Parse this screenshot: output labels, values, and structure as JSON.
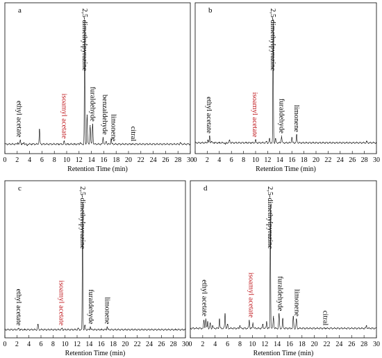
{
  "chart_data": [
    {
      "panel": "a",
      "type": "line",
      "xlabel": "Retention Time (min)",
      "xlim": [
        0,
        30
      ],
      "xticks": [
        0,
        2,
        4,
        6,
        8,
        10,
        12,
        14,
        16,
        18,
        20,
        22,
        24,
        26,
        28,
        30
      ],
      "baseline": 0.03,
      "peaks": [
        {
          "x": 2.1,
          "y": 0.04
        },
        {
          "x": 2.5,
          "y": 0.06
        },
        {
          "x": 2.7,
          "y": 0.03
        },
        {
          "x": 3.1,
          "y": 0.04
        },
        {
          "x": 3.6,
          "y": 0.02
        },
        {
          "x": 4.4,
          "y": 0.03
        },
        {
          "x": 5.6,
          "y": 0.14
        },
        {
          "x": 8.7,
          "y": 0.03
        },
        {
          "x": 9.6,
          "y": 0.05
        },
        {
          "x": 10.2,
          "y": 0.03
        },
        {
          "x": 11.3,
          "y": 0.03
        },
        {
          "x": 12.2,
          "y": 0.04
        },
        {
          "x": 12.9,
          "y": 0.96
        },
        {
          "x": 13.3,
          "y": 0.25
        },
        {
          "x": 13.8,
          "y": 0.17
        },
        {
          "x": 14.2,
          "y": 0.18
        },
        {
          "x": 15.9,
          "y": 0.08
        },
        {
          "x": 16.4,
          "y": 0.05
        },
        {
          "x": 17.2,
          "y": 0.07
        },
        {
          "x": 20.5,
          "y": 0.03
        },
        {
          "x": 28.4,
          "y": 0.04
        }
      ],
      "annotations": [
        {
          "text": "ethyl acetate",
          "x": 2.3,
          "color": "#000000"
        },
        {
          "text": "isoamyl acetate",
          "x": 9.6,
          "color": "#c0191e"
        },
        {
          "text": "2,5-dimethylpyrazine",
          "x": 12.9,
          "color": "#000000"
        },
        {
          "text": "furaldehyde",
          "x": 14.2,
          "color": "#000000"
        },
        {
          "text": "benzaldehyde",
          "x": 16.2,
          "color": "#000000"
        },
        {
          "text": "limonene",
          "x": 17.6,
          "color": "#000000"
        },
        {
          "text": "citral",
          "x": 20.8,
          "color": "#000000"
        }
      ]
    },
    {
      "panel": "b",
      "type": "line",
      "xlabel": "Retention Time (min)",
      "xlim": [
        0,
        30
      ],
      "xticks": [
        0,
        2,
        4,
        6,
        8,
        10,
        12,
        14,
        16,
        18,
        20,
        22,
        24,
        26,
        28,
        30
      ],
      "baseline": 0.04,
      "peaks": [
        {
          "x": 2.1,
          "y": 0.06
        },
        {
          "x": 2.4,
          "y": 0.09
        },
        {
          "x": 2.7,
          "y": 0.05
        },
        {
          "x": 3.2,
          "y": 0.04
        },
        {
          "x": 4.0,
          "y": 0.04
        },
        {
          "x": 5.0,
          "y": 0.03
        },
        {
          "x": 5.7,
          "y": 0.06
        },
        {
          "x": 8.5,
          "y": 0.04
        },
        {
          "x": 9.3,
          "y": 0.04
        },
        {
          "x": 10.0,
          "y": 0.06
        },
        {
          "x": 11.8,
          "y": 0.05
        },
        {
          "x": 12.3,
          "y": 0.07
        },
        {
          "x": 12.9,
          "y": 0.97
        },
        {
          "x": 13.3,
          "y": 0.07
        },
        {
          "x": 14.3,
          "y": 0.09
        },
        {
          "x": 16.0,
          "y": 0.08
        },
        {
          "x": 16.8,
          "y": 0.1
        },
        {
          "x": 28.4,
          "y": 0.05
        }
      ],
      "annotations": [
        {
          "text": "ethyl acetate",
          "x": 2.3,
          "color": "#000000"
        },
        {
          "text": "isoamyl acetate",
          "x": 9.9,
          "color": "#c0191e"
        },
        {
          "text": "2,5-dimethylpyrazine",
          "x": 12.9,
          "color": "#000000"
        },
        {
          "text": "furaldehyde",
          "x": 14.3,
          "color": "#000000"
        },
        {
          "text": "limonene",
          "x": 16.8,
          "color": "#000000"
        }
      ]
    },
    {
      "panel": "c",
      "type": "line",
      "xlabel": "Retention Time (min)",
      "xlim": [
        0,
        30
      ],
      "xticks": [
        0,
        2,
        4,
        6,
        8,
        10,
        12,
        14,
        16,
        18,
        20,
        22,
        24,
        26,
        28,
        30
      ],
      "baseline": 0.02,
      "peaks": [
        {
          "x": 2.3,
          "y": 0.03
        },
        {
          "x": 2.6,
          "y": 0.02
        },
        {
          "x": 3.3,
          "y": 0.02
        },
        {
          "x": 5.5,
          "y": 0.06
        },
        {
          "x": 9.5,
          "y": 0.03
        },
        {
          "x": 12.2,
          "y": 0.03
        },
        {
          "x": 12.9,
          "y": 0.98
        },
        {
          "x": 13.3,
          "y": 0.05
        },
        {
          "x": 14.2,
          "y": 0.04
        },
        {
          "x": 16.0,
          "y": 0.02
        },
        {
          "x": 17.0,
          "y": 0.04
        },
        {
          "x": 28.4,
          "y": 0.02
        }
      ],
      "annotations": [
        {
          "text": "ethyl acetate",
          "x": 2.3,
          "color": "#000000"
        },
        {
          "text": "isoamyl acetate",
          "x": 9.4,
          "color": "#c0191e"
        },
        {
          "text": "2,5-dimethylpyrazine",
          "x": 12.9,
          "color": "#000000"
        },
        {
          "text": "furaldehyde",
          "x": 14.3,
          "color": "#000000"
        },
        {
          "text": "limonene",
          "x": 17.0,
          "color": "#000000"
        }
      ]
    },
    {
      "panel": "d",
      "type": "line",
      "xlabel": "Retention Time (min)",
      "xlim": [
        0,
        30
      ],
      "xticks": [
        0,
        2,
        4,
        6,
        8,
        10,
        12,
        14,
        16,
        18,
        20,
        22,
        24,
        26,
        28,
        30
      ],
      "baseline": 0.03,
      "peaks": [
        {
          "x": 2.2,
          "y": 0.09
        },
        {
          "x": 2.5,
          "y": 0.1
        },
        {
          "x": 2.8,
          "y": 0.08
        },
        {
          "x": 3.2,
          "y": 0.07
        },
        {
          "x": 3.6,
          "y": 0.05
        },
        {
          "x": 4.7,
          "y": 0.1
        },
        {
          "x": 5.6,
          "y": 0.14
        },
        {
          "x": 6.0,
          "y": 0.06
        },
        {
          "x": 8.0,
          "y": 0.05
        },
        {
          "x": 9.5,
          "y": 0.09
        },
        {
          "x": 10.1,
          "y": 0.07
        },
        {
          "x": 11.7,
          "y": 0.06
        },
        {
          "x": 12.3,
          "y": 0.08
        },
        {
          "x": 12.9,
          "y": 0.96
        },
        {
          "x": 13.4,
          "y": 0.12
        },
        {
          "x": 14.3,
          "y": 0.14
        },
        {
          "x": 14.9,
          "y": 0.1
        },
        {
          "x": 16.6,
          "y": 0.12
        },
        {
          "x": 17.1,
          "y": 0.1
        },
        {
          "x": 21.8,
          "y": 0.03
        },
        {
          "x": 28.4,
          "y": 0.05
        }
      ],
      "annotations": [
        {
          "text": "ethyl acetate",
          "x": 2.3,
          "color": "#000000"
        },
        {
          "text": "isoamyl acetate",
          "x": 9.8,
          "color": "#c0191e"
        },
        {
          "text": "2,5-dimethylpyrazine",
          "x": 12.9,
          "color": "#000000"
        },
        {
          "text": "furaldehyde",
          "x": 14.5,
          "color": "#000000"
        },
        {
          "text": "limonene",
          "x": 17.2,
          "color": "#000000"
        },
        {
          "text": "citral",
          "x": 21.8,
          "color": "#000000"
        }
      ]
    }
  ]
}
